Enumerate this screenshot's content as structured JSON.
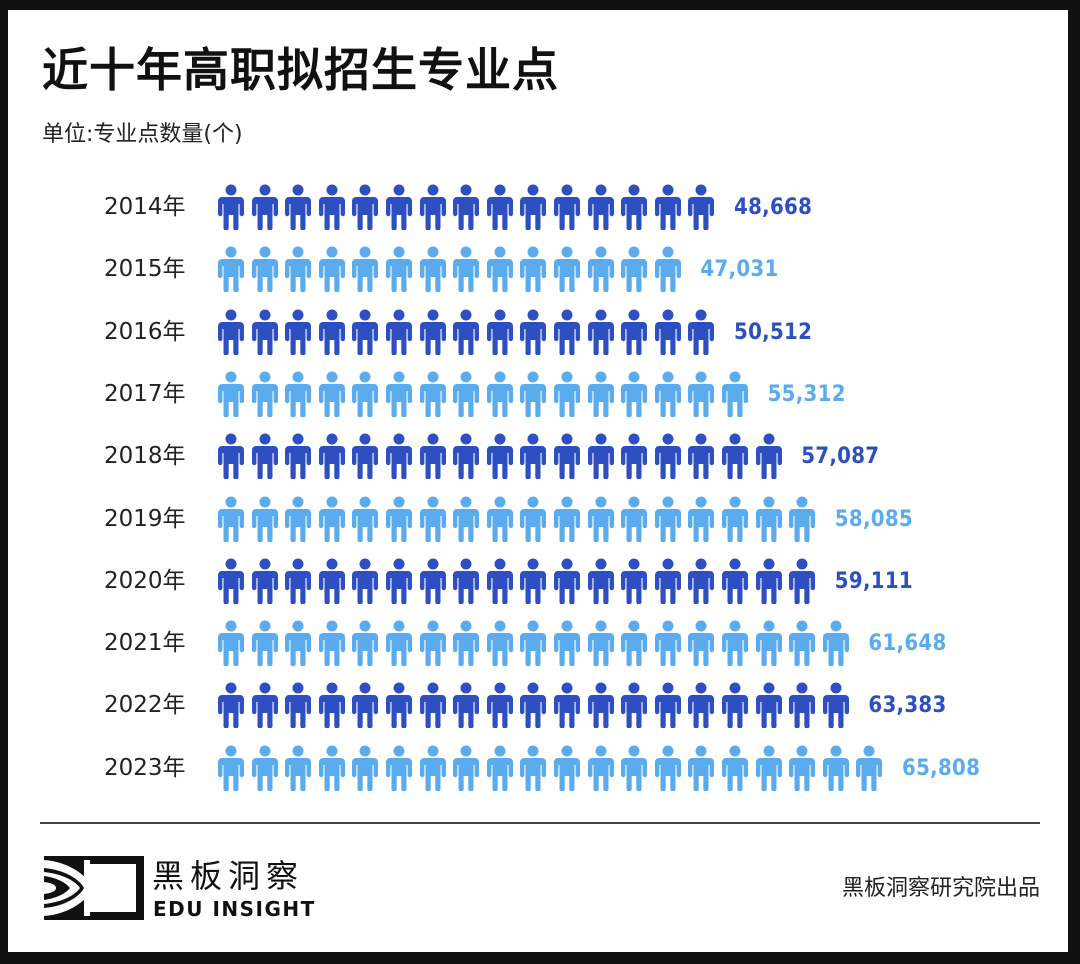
{
  "header": {
    "title": "近十年高职拟招生专业点",
    "unit": "单位:专业点数量(个)"
  },
  "colors": {
    "dark_blue": "#2d4fc2",
    "light_blue": "#5babef"
  },
  "rows": [
    {
      "year": "2014年",
      "value": "48,668",
      "icons": 15,
      "color": "dark"
    },
    {
      "year": "2015年",
      "value": "47,031",
      "icons": 14,
      "color": "light"
    },
    {
      "year": "2016年",
      "value": "50,512",
      "icons": 15,
      "color": "dark"
    },
    {
      "year": "2017年",
      "value": "55,312",
      "icons": 16,
      "color": "light"
    },
    {
      "year": "2018年",
      "value": "57,087",
      "icons": 17,
      "color": "dark"
    },
    {
      "year": "2019年",
      "value": "58,085",
      "icons": 18,
      "color": "light"
    },
    {
      "year": "2020年",
      "value": "59,111",
      "icons": 18,
      "color": "dark"
    },
    {
      "year": "2021年",
      "value": "61,648",
      "icons": 19,
      "color": "light"
    },
    {
      "year": "2022年",
      "value": "63,383",
      "icons": 19,
      "color": "dark"
    },
    {
      "year": "2023年",
      "value": "65,808",
      "icons": 20,
      "color": "light"
    }
  ],
  "footer": {
    "brand_cn": "黑板洞察",
    "brand_en": "EDU INSIGHT",
    "credit": "黑板洞察研究院出品",
    "logo_icon": "eye-frame-logo-icon"
  },
  "chart_data": {
    "type": "bar",
    "title": "近十年高职拟招生专业点",
    "subtitle": "单位:专业点数量(个)",
    "orientation": "horizontal",
    "style": "pictogram",
    "categories": [
      "2014年",
      "2015年",
      "2016年",
      "2017年",
      "2018年",
      "2019年",
      "2020年",
      "2021年",
      "2022年",
      "2023年"
    ],
    "values": [
      48668,
      47031,
      50512,
      55312,
      57087,
      58085,
      59111,
      61648,
      63383,
      65808
    ],
    "icon_counts": [
      15,
      14,
      15,
      16,
      17,
      18,
      18,
      19,
      19,
      20
    ],
    "xlabel": "",
    "ylabel": "",
    "grid": false,
    "legend": null
  }
}
